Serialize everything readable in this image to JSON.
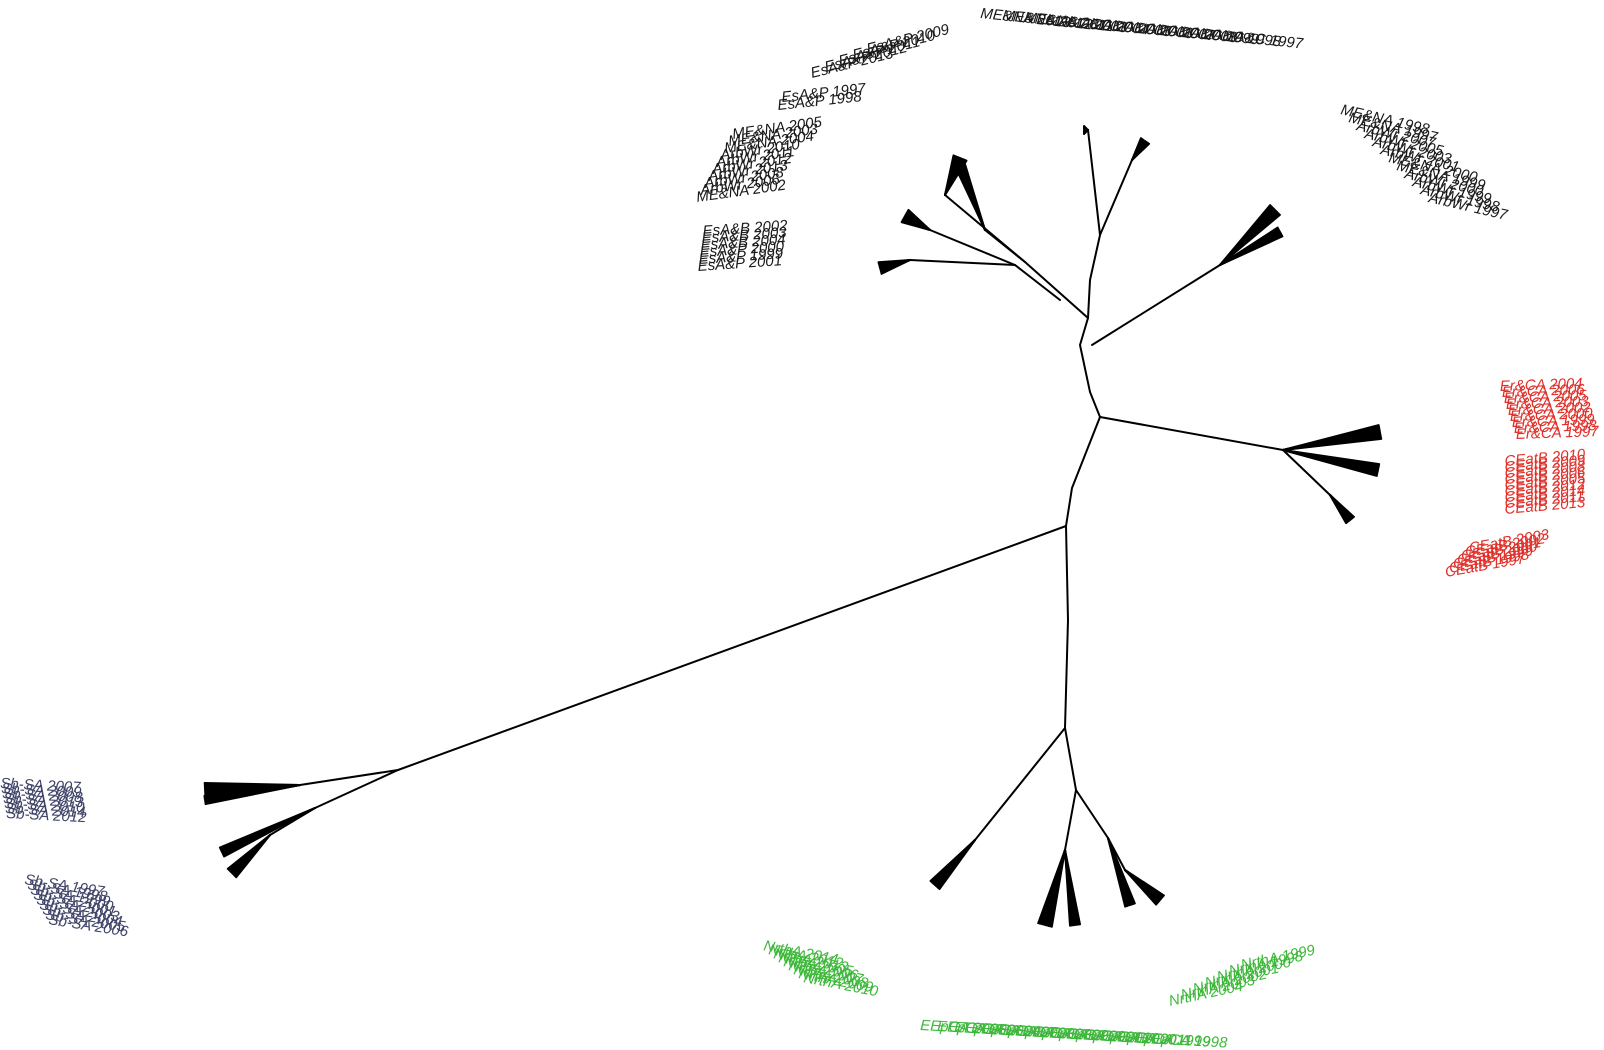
{
  "colors": {
    "branch": "#000000",
    "black": "#1a1a1a",
    "red": "#e0302a",
    "green": "#3db83a",
    "slate": "#3f4468"
  },
  "clusters": [
    {
      "id": "esap-1",
      "color": "black",
      "labels": [
        "EsA&P 2013",
        "EsA&P 2012",
        "EsA&P 2011",
        "EsA&P 2010",
        "EsA&P 2009"
      ]
    },
    {
      "id": "esap-2",
      "color": "black",
      "labels": [
        "EsA&P 1997",
        "EsA&P 1998"
      ]
    },
    {
      "id": "mena-1",
      "color": "black",
      "labels": [
        "ME&NA 2005",
        "ME&NA 2003",
        "ME&NA 2004",
        "ArbWr 2010",
        "ArbWr 2011",
        "ArbWr 2012",
        "ArbWr 2013",
        "ArbWr 2008",
        "ArbWr 2006",
        "ME&NA 2002"
      ]
    },
    {
      "id": "esab",
      "color": "black",
      "labels": [
        "EsA&B 2002",
        "EsA&B 2003",
        "EsA&B 2004",
        "EsA&P 2000",
        "EsA&P 1999",
        "EsA&P 2001"
      ]
    },
    {
      "id": "top",
      "color": "black",
      "labels": [
        "ME&NA 2013",
        "ME&NA 2012",
        "ME&NA 2011",
        "LtA&C 2003",
        "LtA&C 2004",
        "LtA&C 2005",
        "LtA&C 2006",
        "LtA&C 2007",
        "LtA&C 2008",
        "LtA&C 1999",
        "LtA&C 1998",
        "LtA&C 1997"
      ]
    },
    {
      "id": "arbwr",
      "color": "black",
      "labels": [
        "ME&NA 1998",
        "ME&NA 1997",
        "ArbWr 2007",
        "ArbWr 2005",
        "ArbWr 2003",
        "ArbWr 2001",
        "ME&NA 2000",
        "ME&NA 1999",
        "ArbWr 2000",
        "ArbWr 1999",
        "ArbWr 1998",
        "ArbWr 1997"
      ]
    },
    {
      "id": "erca",
      "color": "red",
      "labels": [
        "Er&CA 2004",
        "Er&CA 2006",
        "Er&CA 2005",
        "Er&CA 2003",
        "Er&CA 2002",
        "Er&CA 2000",
        "Er&CA 1999",
        "Er&CA 1998",
        "Er&CA 1997"
      ]
    },
    {
      "id": "ceatb-1",
      "color": "red",
      "labels": [
        "CEatB 2010",
        "CEatB 2009",
        "CEatB 2008",
        "CEatB 2006",
        "CEatB 2005",
        "CEatB 2012",
        "CEatB 2014",
        "CEatB 2011",
        "CEatB 2013"
      ]
    },
    {
      "id": "ceatb-2",
      "color": "red",
      "labels": [
        "CEatB 2003",
        "CEatB 2002",
        "CEatB 2001",
        "CEatB 2000",
        "CEatB 1999",
        "CEatB 1998",
        "CEatB 1997"
      ]
    },
    {
      "id": "sbsa-1",
      "color": "slate",
      "labels": [
        "Sb-SA 2007",
        "Sb-SA 2009",
        "Sb-SA 2008",
        "Sb-SA 2013",
        "Sb-SA 2010",
        "Sb-SA 2014",
        "Sb-SA 2012"
      ]
    },
    {
      "id": "sbsa-2",
      "color": "slate",
      "labels": [
        "Sb-SA 1997",
        "Sb-SA 1998",
        "Sb-SA 1999",
        "Sb-SA 2000",
        "Sb-SA 2001",
        "Sb-SA 2003",
        "Sb-SA 2004",
        "Sb-SA 2005",
        "Sb-SA 2006"
      ]
    },
    {
      "id": "nrtha-1",
      "color": "green",
      "labels": [
        "NrthA 2014",
        "NrthA 2012",
        "NrthA 2013",
        "NrthA 2005",
        "NrthA 2006",
        "NrthA 2007",
        "NrthA 2008",
        "NrthA 2009",
        "NrthA 2010"
      ]
    },
    {
      "id": "nrtha-2",
      "color": "green",
      "labels": [
        "NrthA 1999",
        "NrthA 1998",
        "NrthA 2000",
        "NrthA 2001",
        "NrthA 2002",
        "NrthA 2003",
        "NrthA 2004"
      ]
    },
    {
      "id": "eeca",
      "color": "green",
      "labels": [
        "EEpCA 2005",
        "EEpCA 2006",
        "EEpCA 2004",
        "EEpCA 2007",
        "EEpCA 2003",
        "EEpCA 2008",
        "EEpCA 2002",
        "EEpCA 2009",
        "EEpCA 2001",
        "EEpCA 2010",
        "EEpCA 2000",
        "EEpCA 2011",
        "EEpCA 1999",
        "EEpCA 1998"
      ]
    }
  ]
}
